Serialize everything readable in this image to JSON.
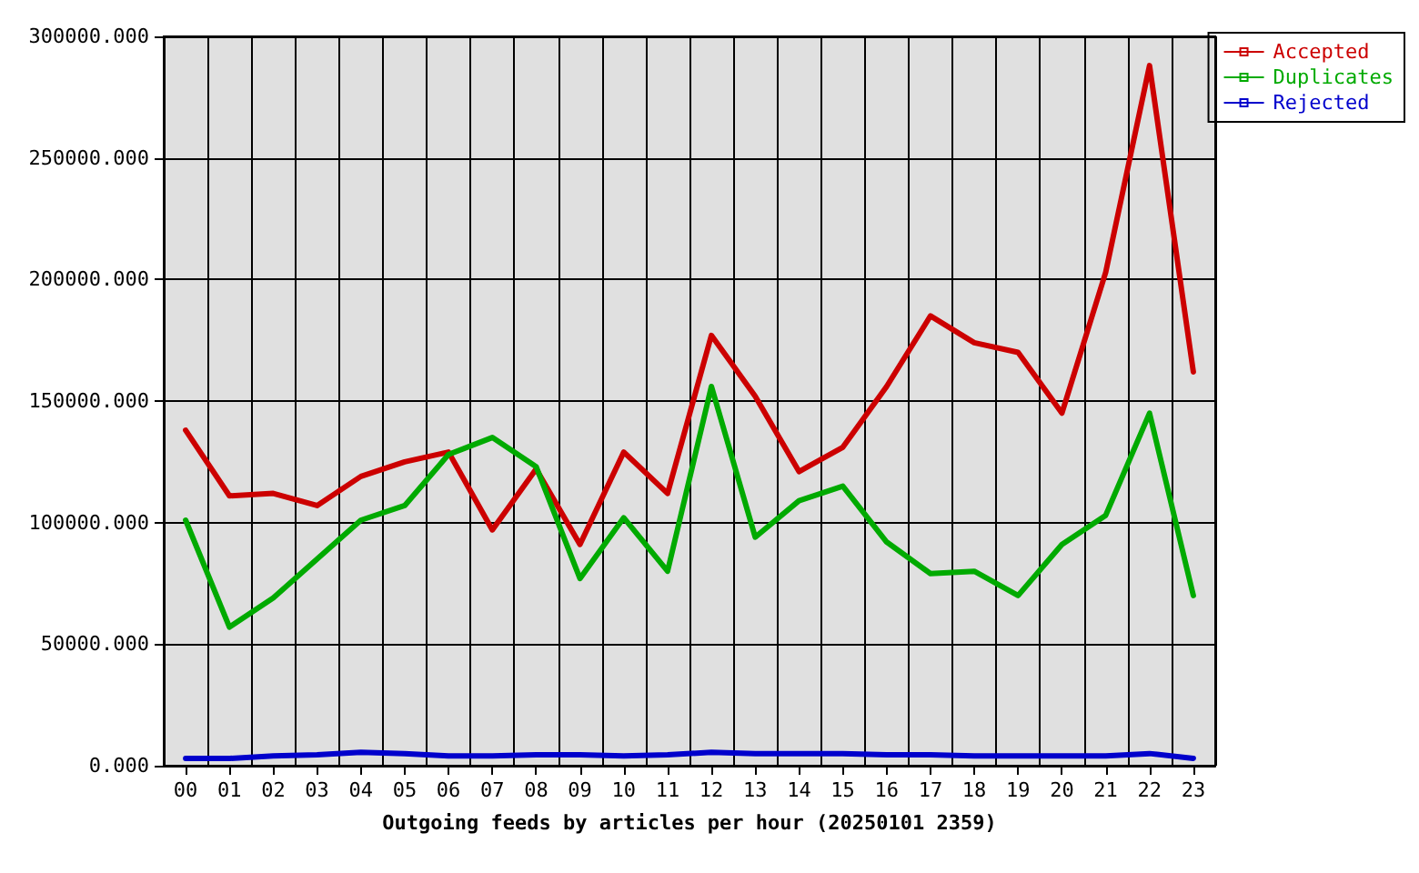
{
  "chart_data": {
    "type": "line",
    "xlabel": "Outgoing feeds by articles per hour (20250101 2359)",
    "categories": [
      "00",
      "01",
      "02",
      "03",
      "04",
      "05",
      "06",
      "07",
      "08",
      "09",
      "10",
      "11",
      "12",
      "13",
      "14",
      "15",
      "16",
      "17",
      "18",
      "19",
      "20",
      "21",
      "22",
      "23"
    ],
    "series": [
      {
        "name": "Accepted",
        "color": "#cc0000",
        "values": [
          138000,
          111000,
          112000,
          107000,
          119000,
          125000,
          129000,
          97000,
          122000,
          91000,
          129000,
          112000,
          177000,
          152000,
          121000,
          131000,
          156000,
          185000,
          174000,
          170000,
          145000,
          203000,
          288000,
          162000
        ]
      },
      {
        "name": "Duplicates",
        "color": "#00aa00",
        "values": [
          101000,
          57000,
          69000,
          85000,
          101000,
          107000,
          128000,
          135000,
          123000,
          77000,
          102000,
          80000,
          156000,
          94000,
          109000,
          115000,
          92000,
          79000,
          80000,
          70000,
          91000,
          103000,
          145000,
          70000
        ]
      },
      {
        "name": "Rejected",
        "color": "#0000cc",
        "values": [
          3000,
          3000,
          4000,
          4500,
          5500,
          5000,
          4000,
          4000,
          4500,
          4500,
          4000,
          4500,
          5500,
          5000,
          5000,
          5000,
          4500,
          4500,
          4000,
          4000,
          4000,
          4000,
          5000,
          3000
        ]
      }
    ],
    "ylim": [
      0,
      300000
    ],
    "yticks": [
      {
        "value": 0,
        "label": "0.000"
      },
      {
        "value": 50000,
        "label": "50000.000"
      },
      {
        "value": 100000,
        "label": "100000.000"
      },
      {
        "value": 150000,
        "label": "150000.000"
      },
      {
        "value": 200000,
        "label": "200000.000"
      },
      {
        "value": 250000,
        "label": "250000.000"
      },
      {
        "value": 300000,
        "label": "300000.000"
      }
    ],
    "grid": true,
    "legend": "top right",
    "marker": "none",
    "line_style": "solid"
  }
}
